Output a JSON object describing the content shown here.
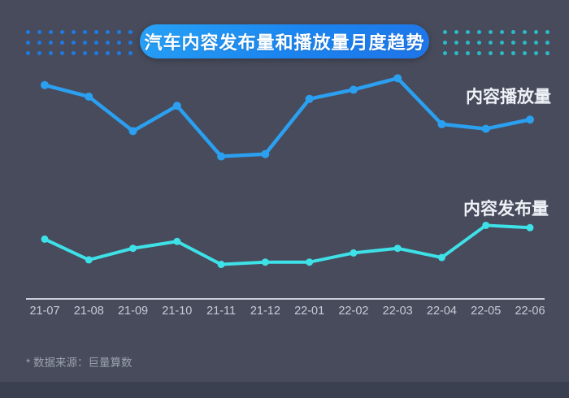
{
  "header": {
    "title": "汽车内容发布量和播放量月度趋势"
  },
  "decor": {
    "left_dots_color": "#1e7be4",
    "right_dots_color": "#2eb9c7",
    "dot_rows": 3,
    "dot_cols": 10
  },
  "chart_data": {
    "type": "line",
    "title": "汽车内容发布量和播放量月度趋势",
    "categories": [
      "21-07",
      "21-08",
      "21-09",
      "21-10",
      "21-11",
      "21-12",
      "22-01",
      "22-02",
      "22-03",
      "22-04",
      "22-05",
      "22-06"
    ],
    "series": [
      {
        "name": "内容播放量",
        "color": "#2b9ff0",
        "values": [
          93,
          88,
          73,
          84,
          62,
          63,
          87,
          91,
          96,
          76,
          74,
          78
        ]
      },
      {
        "name": "内容发布量",
        "color": "#3ee1e7",
        "values": [
          26,
          17,
          22,
          25,
          15,
          16,
          16,
          20,
          22,
          18,
          32,
          31
        ]
      }
    ],
    "xlabel": "",
    "ylabel": "",
    "ylim": [
      0,
      100
    ],
    "y_scale_note": "relative index; no numeric y-axis shown in figure",
    "grid": false,
    "legend_position": "inline labels right of each line",
    "axis_color": "#c9ceda",
    "tick_label_color": "#c7cbd6"
  },
  "footer": {
    "note": "* 数据来源：巨量算数"
  }
}
